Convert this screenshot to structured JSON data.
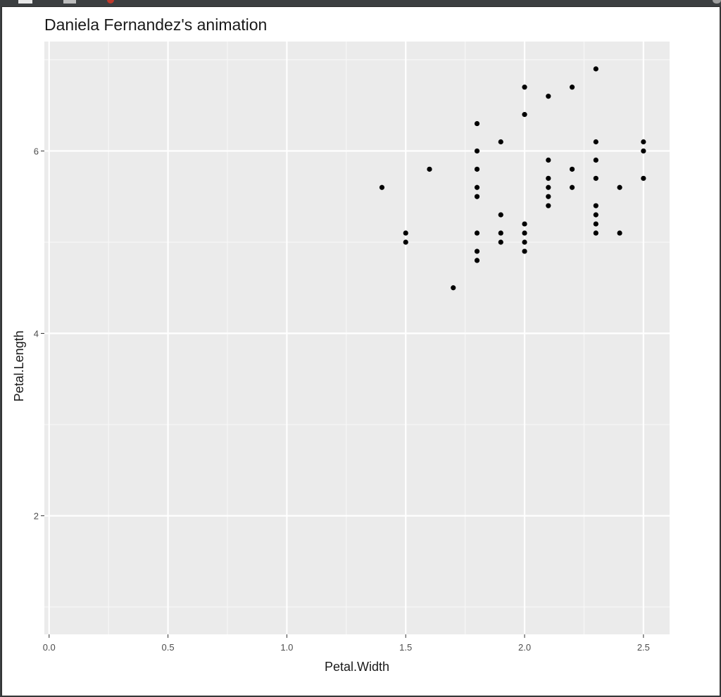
{
  "chart_data": {
    "type": "scatter",
    "title": "Daniela Fernandez's animation",
    "xlabel": "Petal.Width",
    "ylabel": "Petal.Length",
    "xlim": [
      -0.02,
      2.61
    ],
    "ylim": [
      0.7,
      7.2
    ],
    "x_ticks": [
      "0.0",
      "0.5",
      "1.0",
      "1.5",
      "2.0",
      "2.5"
    ],
    "y_ticks": [
      "2",
      "4",
      "6"
    ],
    "grid": true,
    "background_color": "#ebebeb",
    "point_color": "#000000",
    "points": [
      [
        1.4,
        5.6
      ],
      [
        1.5,
        5.1
      ],
      [
        1.5,
        5.0
      ],
      [
        1.6,
        5.8
      ],
      [
        1.7,
        4.5
      ],
      [
        1.8,
        6.3
      ],
      [
        1.8,
        6.0
      ],
      [
        1.8,
        5.8
      ],
      [
        1.8,
        5.6
      ],
      [
        1.8,
        5.5
      ],
      [
        1.8,
        5.1
      ],
      [
        1.8,
        4.9
      ],
      [
        1.8,
        4.8
      ],
      [
        1.9,
        6.1
      ],
      [
        1.9,
        5.3
      ],
      [
        1.9,
        5.1
      ],
      [
        1.9,
        5.0
      ],
      [
        2.0,
        6.7
      ],
      [
        2.0,
        6.4
      ],
      [
        2.0,
        5.2
      ],
      [
        2.0,
        5.1
      ],
      [
        2.0,
        5.0
      ],
      [
        2.0,
        4.9
      ],
      [
        2.1,
        6.6
      ],
      [
        2.1,
        5.9
      ],
      [
        2.1,
        5.7
      ],
      [
        2.1,
        5.6
      ],
      [
        2.1,
        5.5
      ],
      [
        2.1,
        5.4
      ],
      [
        2.2,
        6.7
      ],
      [
        2.2,
        5.8
      ],
      [
        2.2,
        5.6
      ],
      [
        2.3,
        6.9
      ],
      [
        2.3,
        6.1
      ],
      [
        2.3,
        5.9
      ],
      [
        2.3,
        5.7
      ],
      [
        2.3,
        5.4
      ],
      [
        2.3,
        5.3
      ],
      [
        2.3,
        5.2
      ],
      [
        2.3,
        5.1
      ],
      [
        2.4,
        5.6
      ],
      [
        2.4,
        5.1
      ],
      [
        2.5,
        6.1
      ],
      [
        2.5,
        6.0
      ],
      [
        2.5,
        5.7
      ]
    ]
  }
}
